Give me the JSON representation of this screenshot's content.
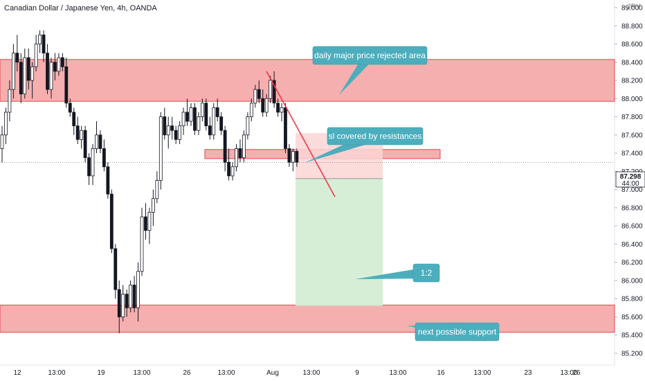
{
  "header": {
    "title": "Canadian Dollar / Japanese Yen, 4h, OANDA",
    "currency": "JPY"
  },
  "colors": {
    "up": "#131722",
    "down": "#ffffff",
    "zone_fill": "#f4a6a6",
    "zone_stroke": "#e0474c",
    "stop_fill": "#fbd5d5",
    "target_fill": "#d3ecd2",
    "callout": "#4caebd",
    "trendline": "#f23645",
    "last_tag_bg": "#ffffff",
    "grid": "#e0e3eb"
  },
  "chart_data": {
    "type": "candlestick",
    "y_ticks": [
      "89.000",
      "88.800",
      "88.600",
      "88.400",
      "88.200",
      "88.000",
      "87.800",
      "87.600",
      "87.400",
      "87.200",
      "87.000",
      "86.800",
      "86.600",
      "86.400",
      "86.200",
      "86.000",
      "85.800",
      "85.600",
      "85.400",
      "85.200"
    ],
    "ylim": [
      85.1,
      89.3
    ],
    "x_ticks": [
      "12",
      "13:00",
      "19",
      "13:00",
      "26",
      "13:00",
      "Aug",
      "13:00",
      "9",
      "13:00",
      "16",
      "13:00",
      "23",
      "13:00",
      "26"
    ],
    "last_price": "87.298",
    "countdown": "44:00",
    "zones": [
      {
        "name": "daily major price rejected area zone",
        "low": 87.97,
        "high": 88.43
      },
      {
        "name": "resistance zone",
        "low": 87.34,
        "high": 87.44
      },
      {
        "name": "next possible support zone",
        "low": 85.43,
        "high": 85.73
      }
    ],
    "trade": {
      "entry": 87.12,
      "stop": 87.62,
      "target": 85.72
    },
    "trendline": {
      "from": [
        385,
        88.3
      ],
      "to": [
        484,
        86.92
      ]
    },
    "annotations": [
      {
        "text": "daily major price rejected area"
      },
      {
        "text": "sl covered by resistances"
      },
      {
        "text": "1:2"
      },
      {
        "text": "next possible support"
      }
    ],
    "candles": [
      {
        "o": 87.45,
        "h": 87.7,
        "l": 87.3,
        "c": 87.6
      },
      {
        "o": 87.6,
        "h": 87.9,
        "l": 87.5,
        "c": 87.85
      },
      {
        "o": 87.85,
        "h": 88.2,
        "l": 87.75,
        "c": 88.1
      },
      {
        "o": 88.1,
        "h": 88.6,
        "l": 88.0,
        "c": 88.5
      },
      {
        "o": 88.5,
        "h": 88.7,
        "l": 88.3,
        "c": 88.4
      },
      {
        "o": 88.4,
        "h": 88.5,
        "l": 87.95,
        "c": 88.05
      },
      {
        "o": 88.05,
        "h": 88.55,
        "l": 88.0,
        "c": 88.45
      },
      {
        "o": 88.45,
        "h": 88.55,
        "l": 88.1,
        "c": 88.2
      },
      {
        "o": 88.2,
        "h": 88.4,
        "l": 88.0,
        "c": 88.35
      },
      {
        "o": 88.35,
        "h": 88.7,
        "l": 88.3,
        "c": 88.6
      },
      {
        "o": 88.6,
        "h": 88.75,
        "l": 88.5,
        "c": 88.7
      },
      {
        "o": 88.7,
        "h": 88.75,
        "l": 88.4,
        "c": 88.5
      },
      {
        "o": 88.5,
        "h": 88.6,
        "l": 88.05,
        "c": 88.1
      },
      {
        "o": 88.1,
        "h": 88.45,
        "l": 88.0,
        "c": 88.4
      },
      {
        "o": 88.4,
        "h": 88.5,
        "l": 88.2,
        "c": 88.3
      },
      {
        "o": 88.3,
        "h": 88.5,
        "l": 88.25,
        "c": 88.45
      },
      {
        "o": 88.45,
        "h": 88.5,
        "l": 88.3,
        "c": 88.35
      },
      {
        "o": 88.35,
        "h": 88.45,
        "l": 87.9,
        "c": 87.95
      },
      {
        "o": 87.95,
        "h": 88.0,
        "l": 87.8,
        "c": 87.85
      },
      {
        "o": 87.85,
        "h": 87.9,
        "l": 87.6,
        "c": 87.7
      },
      {
        "o": 87.7,
        "h": 87.8,
        "l": 87.5,
        "c": 87.55
      },
      {
        "o": 87.55,
        "h": 87.7,
        "l": 87.45,
        "c": 87.65
      },
      {
        "o": 87.65,
        "h": 87.7,
        "l": 87.3,
        "c": 87.35
      },
      {
        "o": 87.35,
        "h": 87.4,
        "l": 87.05,
        "c": 87.15
      },
      {
        "o": 87.15,
        "h": 87.5,
        "l": 87.05,
        "c": 87.45
      },
      {
        "o": 87.45,
        "h": 87.75,
        "l": 87.4,
        "c": 87.6
      },
      {
        "o": 87.6,
        "h": 87.65,
        "l": 87.4,
        "c": 87.45
      },
      {
        "o": 87.45,
        "h": 87.55,
        "l": 87.2,
        "c": 87.25
      },
      {
        "o": 87.25,
        "h": 87.3,
        "l": 86.9,
        "c": 86.95
      },
      {
        "o": 86.95,
        "h": 87.0,
        "l": 86.3,
        "c": 86.35
      },
      {
        "o": 86.35,
        "h": 86.4,
        "l": 85.8,
        "c": 85.9
      },
      {
        "o": 85.9,
        "h": 86.0,
        "l": 85.42,
        "c": 85.6
      },
      {
        "o": 85.6,
        "h": 85.95,
        "l": 85.55,
        "c": 85.85
      },
      {
        "o": 85.85,
        "h": 85.9,
        "l": 85.6,
        "c": 85.7
      },
      {
        "o": 85.7,
        "h": 86.0,
        "l": 85.65,
        "c": 85.95
      },
      {
        "o": 85.95,
        "h": 86.05,
        "l": 85.65,
        "c": 85.7
      },
      {
        "o": 85.7,
        "h": 86.2,
        "l": 85.55,
        "c": 86.1
      },
      {
        "o": 86.1,
        "h": 86.8,
        "l": 86.05,
        "c": 86.7
      },
      {
        "o": 86.7,
        "h": 86.85,
        "l": 86.45,
        "c": 86.55
      },
      {
        "o": 86.55,
        "h": 86.8,
        "l": 86.4,
        "c": 86.75
      },
      {
        "o": 86.75,
        "h": 87.0,
        "l": 86.6,
        "c": 86.9
      },
      {
        "o": 86.9,
        "h": 87.2,
        "l": 86.85,
        "c": 87.1
      },
      {
        "o": 87.1,
        "h": 87.85,
        "l": 87.0,
        "c": 87.8
      },
      {
        "o": 87.8,
        "h": 87.9,
        "l": 87.55,
        "c": 87.6
      },
      {
        "o": 87.6,
        "h": 87.8,
        "l": 87.45,
        "c": 87.7
      },
      {
        "o": 87.7,
        "h": 87.8,
        "l": 87.55,
        "c": 87.65
      },
      {
        "o": 87.65,
        "h": 87.7,
        "l": 87.5,
        "c": 87.55
      },
      {
        "o": 87.55,
        "h": 87.75,
        "l": 87.5,
        "c": 87.7
      },
      {
        "o": 87.7,
        "h": 87.9,
        "l": 87.6,
        "c": 87.85
      },
      {
        "o": 87.85,
        "h": 88.0,
        "l": 87.7,
        "c": 87.75
      },
      {
        "o": 87.75,
        "h": 87.95,
        "l": 87.7,
        "c": 87.9
      },
      {
        "o": 87.9,
        "h": 87.95,
        "l": 87.6,
        "c": 87.65
      },
      {
        "o": 87.65,
        "h": 87.85,
        "l": 87.6,
        "c": 87.8
      },
      {
        "o": 87.8,
        "h": 88.0,
        "l": 87.75,
        "c": 87.95
      },
      {
        "o": 87.95,
        "h": 88.0,
        "l": 87.65,
        "c": 87.7
      },
      {
        "o": 87.7,
        "h": 87.8,
        "l": 87.55,
        "c": 87.6
      },
      {
        "o": 87.6,
        "h": 87.95,
        "l": 87.55,
        "c": 87.9
      },
      {
        "o": 87.9,
        "h": 88.0,
        "l": 87.75,
        "c": 87.8
      },
      {
        "o": 87.8,
        "h": 87.85,
        "l": 87.6,
        "c": 87.65
      },
      {
        "o": 87.65,
        "h": 87.7,
        "l": 87.2,
        "c": 87.3
      },
      {
        "o": 87.3,
        "h": 87.45,
        "l": 87.1,
        "c": 87.15
      },
      {
        "o": 87.15,
        "h": 87.3,
        "l": 87.1,
        "c": 87.25
      },
      {
        "o": 87.25,
        "h": 87.5,
        "l": 87.2,
        "c": 87.45
      },
      {
        "o": 87.45,
        "h": 87.55,
        "l": 87.3,
        "c": 87.35
      },
      {
        "o": 87.35,
        "h": 87.65,
        "l": 87.3,
        "c": 87.6
      },
      {
        "o": 87.6,
        "h": 87.85,
        "l": 87.55,
        "c": 87.8
      },
      {
        "o": 87.8,
        "h": 88.0,
        "l": 87.75,
        "c": 87.95
      },
      {
        "o": 87.95,
        "h": 88.15,
        "l": 87.9,
        "c": 88.1
      },
      {
        "o": 88.1,
        "h": 88.2,
        "l": 87.95,
        "c": 88.0
      },
      {
        "o": 88.0,
        "h": 88.1,
        "l": 87.8,
        "c": 87.85
      },
      {
        "o": 87.85,
        "h": 88.05,
        "l": 87.8,
        "c": 88.0
      },
      {
        "o": 88.0,
        "h": 88.25,
        "l": 87.95,
        "c": 88.2
      },
      {
        "o": 88.2,
        "h": 88.3,
        "l": 87.9,
        "c": 87.95
      },
      {
        "o": 87.95,
        "h": 88.0,
        "l": 87.8,
        "c": 87.85
      },
      {
        "o": 87.85,
        "h": 87.95,
        "l": 87.75,
        "c": 87.9
      },
      {
        "o": 87.9,
        "h": 87.95,
        "l": 87.4,
        "c": 87.45
      },
      {
        "o": 87.45,
        "h": 87.5,
        "l": 87.25,
        "c": 87.3
      },
      {
        "o": 87.3,
        "h": 87.45,
        "l": 87.2,
        "c": 87.42
      },
      {
        "o": 87.42,
        "h": 87.45,
        "l": 87.25,
        "c": 87.3
      }
    ]
  }
}
